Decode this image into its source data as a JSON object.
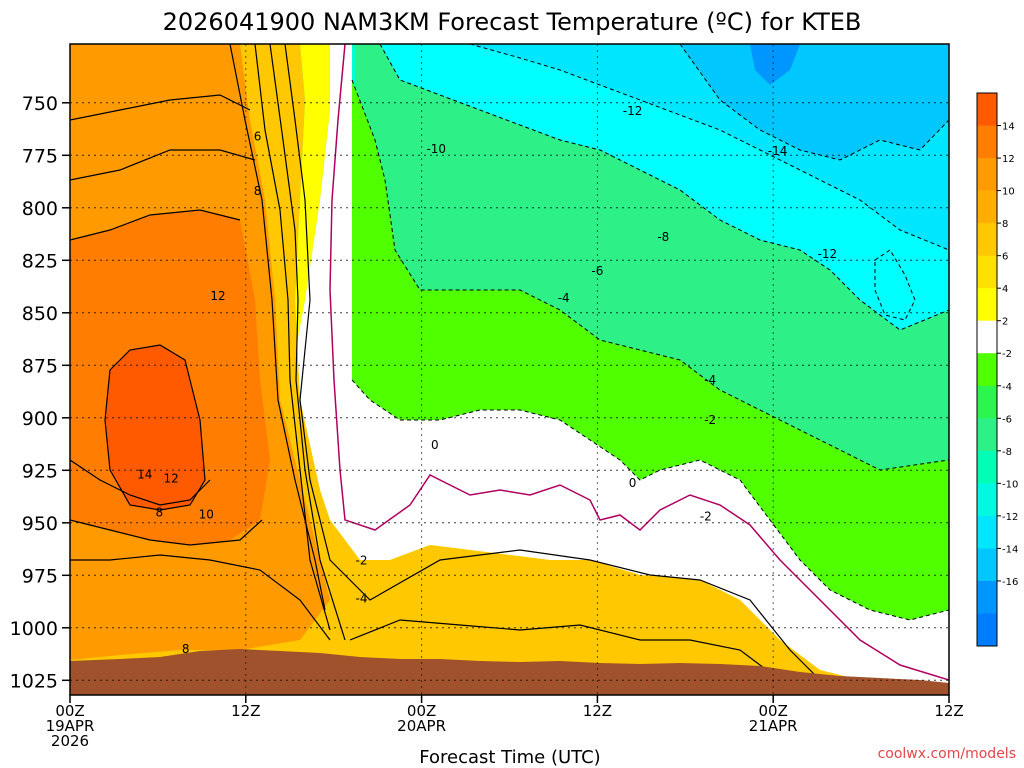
{
  "chart_data": {
    "type": "heatmap",
    "title": "2026041900 NAM3KM Forecast Temperature (ºC) for KTEB",
    "xlabel": "Forecast Time (UTC)",
    "ylabel": "",
    "credit": "coolwx.com/models",
    "units": "°C",
    "x_hours": [
      0,
      12,
      24,
      36,
      48,
      60
    ],
    "x_ticks": [
      {
        "hour": 0,
        "lines": [
          "00Z",
          "19APR",
          "2026"
        ]
      },
      {
        "hour": 12,
        "lines": [
          "12Z"
        ]
      },
      {
        "hour": 24,
        "lines": [
          "00Z",
          "20APR"
        ]
      },
      {
        "hour": 36,
        "lines": [
          "12Z"
        ]
      },
      {
        "hour": 48,
        "lines": [
          "00Z",
          "21APR"
        ]
      },
      {
        "hour": 60,
        "lines": [
          "12Z"
        ]
      }
    ],
    "y_ticks": [
      750,
      775,
      800,
      825,
      850,
      875,
      900,
      925,
      950,
      975,
      1000,
      1025
    ],
    "y_range_hpa": [
      722,
      1032
    ],
    "x_range_hours": [
      0,
      60
    ],
    "colorbar": {
      "labels": [
        14,
        12,
        10,
        8,
        6,
        4,
        2,
        -2,
        -4,
        -6,
        -8,
        -10,
        -12,
        -14,
        -16
      ],
      "colors": [
        "#ff5a00",
        "#ff7d00",
        "#ff9a00",
        "#ffae00",
        "#ffc800",
        "#ffe100",
        "#ffff00",
        "#ffffff",
        "#50ff00",
        "#2df550",
        "#2df087",
        "#00ffb4",
        "#00fae1",
        "#00e6ff",
        "#00c8ff",
        "#0096ff",
        "#007dff"
      ]
    },
    "temperature_bands_c": {
      "warm_layers": [
        {
          "range": "12 to 14",
          "color": "#ff5a00"
        },
        {
          "range": "10 to 12",
          "color": "#ff7d00"
        },
        {
          "range": "6 to 10",
          "color": "#ff9a00"
        },
        {
          "range": "2 to 6",
          "color": "#ffc800"
        },
        {
          "range": "0 to 2",
          "color": "#ffff00"
        }
      ],
      "cold_layers": [
        {
          "range": "-2 to -6",
          "color": "#50ff00"
        },
        {
          "range": "-6 to -10",
          "color": "#00e68c"
        },
        {
          "range": "-10 to -14",
          "color": "#00ffff"
        },
        {
          "range": "below -14",
          "color": "#00aaff"
        }
      ]
    },
    "contour_labels": [
      {
        "text": "6",
        "hour": 12.8,
        "hpa": 766
      },
      {
        "text": "8",
        "hour": 12.8,
        "hpa": 792
      },
      {
        "text": "12",
        "hour": 10.1,
        "hpa": 842
      },
      {
        "text": "14",
        "hour": 5.1,
        "hpa": 927
      },
      {
        "text": "12",
        "hour": 6.9,
        "hpa": 929
      },
      {
        "text": "8",
        "hour": 6.1,
        "hpa": 945
      },
      {
        "text": "10",
        "hour": 9.3,
        "hpa": 946
      },
      {
        "text": "8",
        "hour": 7.9,
        "hpa": 1010
      },
      {
        "text": "-10",
        "hour": 25.0,
        "hpa": 772
      },
      {
        "text": "-12",
        "hour": 38.4,
        "hpa": 754
      },
      {
        "text": "-14",
        "hour": 48.3,
        "hpa": 773
      },
      {
        "text": "-8",
        "hour": 40.5,
        "hpa": 814
      },
      {
        "text": "-12",
        "hour": 51.7,
        "hpa": 822
      },
      {
        "text": "-6",
        "hour": 36.0,
        "hpa": 830
      },
      {
        "text": "-4",
        "hour": 33.7,
        "hpa": 843
      },
      {
        "text": "-4",
        "hour": 43.7,
        "hpa": 882
      },
      {
        "text": "-2",
        "hour": 43.7,
        "hpa": 901
      },
      {
        "text": "0",
        "hour": 24.9,
        "hpa": 913
      },
      {
        "text": "0",
        "hour": 38.4,
        "hpa": 931
      },
      {
        "text": "-2",
        "hour": 43.4,
        "hpa": 947
      },
      {
        "text": "-2",
        "hour": 19.9,
        "hpa": 968
      },
      {
        "text": "-4",
        "hour": 19.9,
        "hpa": 986
      }
    ],
    "terrain_color": "#a0522d",
    "surface_pressure_approx_hpa": [
      1015,
      1011,
      1014,
      1016,
      1018,
      1020,
      1022
    ]
  }
}
